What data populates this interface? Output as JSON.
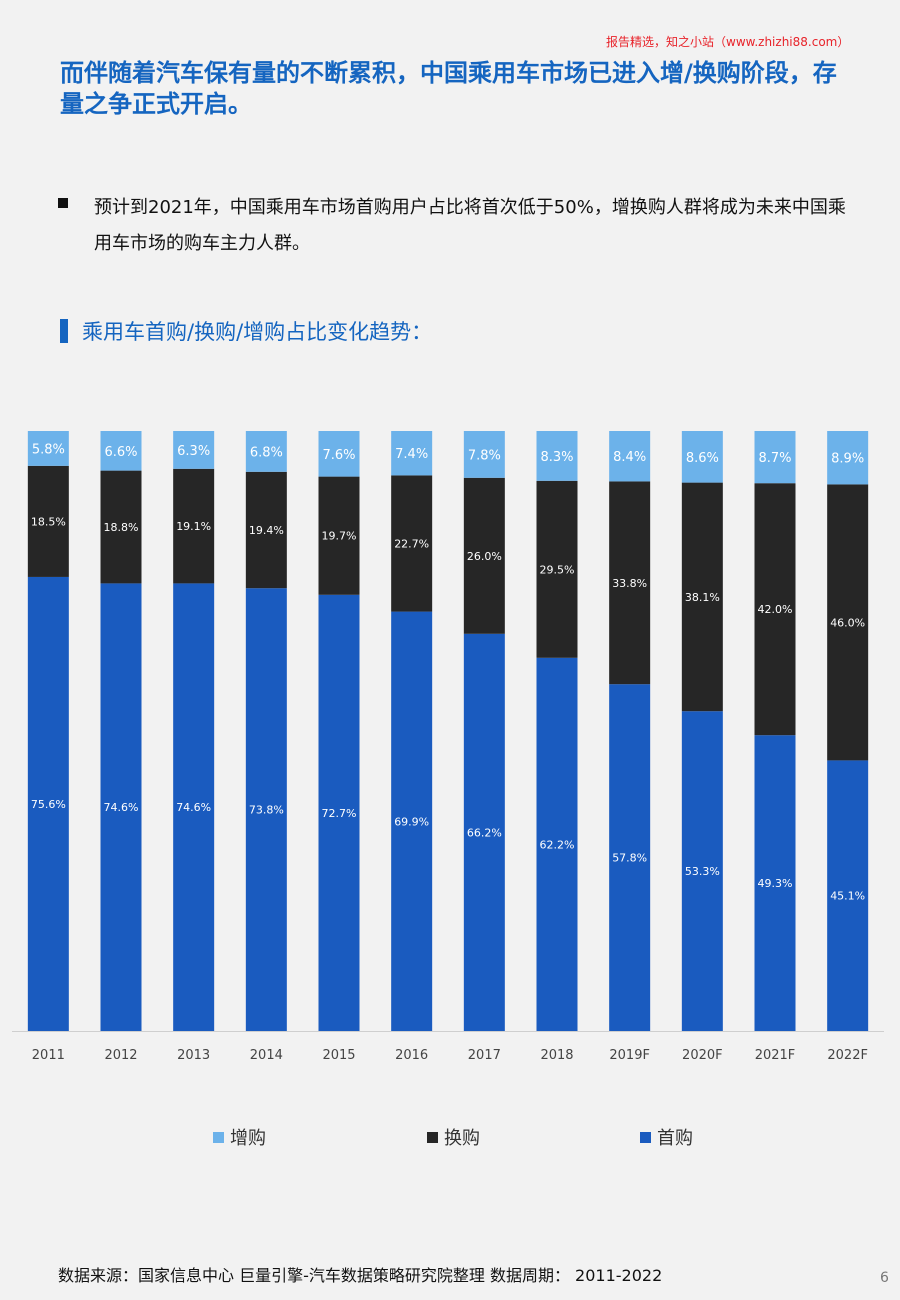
{
  "header": {
    "watermark": "报告精选，知之小站（www.zhizhi88.com）",
    "headline": "而伴随着汽车保有量的不断累积，中国乘用车市场已进入增/换购阶段，存量之争正式开启。"
  },
  "bullet": {
    "text": "预计到2021年，中国乘用车市场首购用户占比将首次低于50%，增换购人群将成为未来中国乘用车市场的购车主力人群。"
  },
  "section": {
    "title": "乘用车首购/换购/增购占比变化趋势："
  },
  "chart_data": {
    "type": "bar",
    "stacked": true,
    "percent_stacked": true,
    "categories": [
      "2011",
      "2012",
      "2013",
      "2014",
      "2015",
      "2016",
      "2017",
      "2018",
      "2019F",
      "2020F",
      "2021F",
      "2022F"
    ],
    "series": [
      {
        "name": "首购",
        "color": "#1a5bbf",
        "label_color": "#ffffff",
        "values": [
          75.6,
          74.6,
          74.6,
          73.8,
          72.7,
          69.9,
          66.2,
          62.2,
          57.8,
          53.3,
          49.3,
          45.1
        ]
      },
      {
        "name": "换购",
        "color": "#262626",
        "label_color": "#ffffff",
        "values": [
          18.5,
          18.8,
          19.1,
          19.4,
          19.7,
          22.7,
          26.0,
          29.5,
          33.8,
          38.1,
          42.0,
          46.0
        ]
      },
      {
        "name": "增购",
        "color": "#6cb2ea",
        "label_color": "#ffffff",
        "values": [
          5.8,
          6.6,
          6.3,
          6.8,
          7.6,
          7.4,
          7.8,
          8.3,
          8.4,
          8.6,
          8.7,
          8.9
        ]
      }
    ],
    "legend_order": [
      "增购",
      "换购",
      "首购"
    ],
    "legend_position": "bottom",
    "grid": false
  },
  "footer": {
    "source": "数据来源：国家信息中心 巨量引擎-汽车数据策略研究院整理 数据周期： 2011-2022",
    "page_number": "6"
  }
}
